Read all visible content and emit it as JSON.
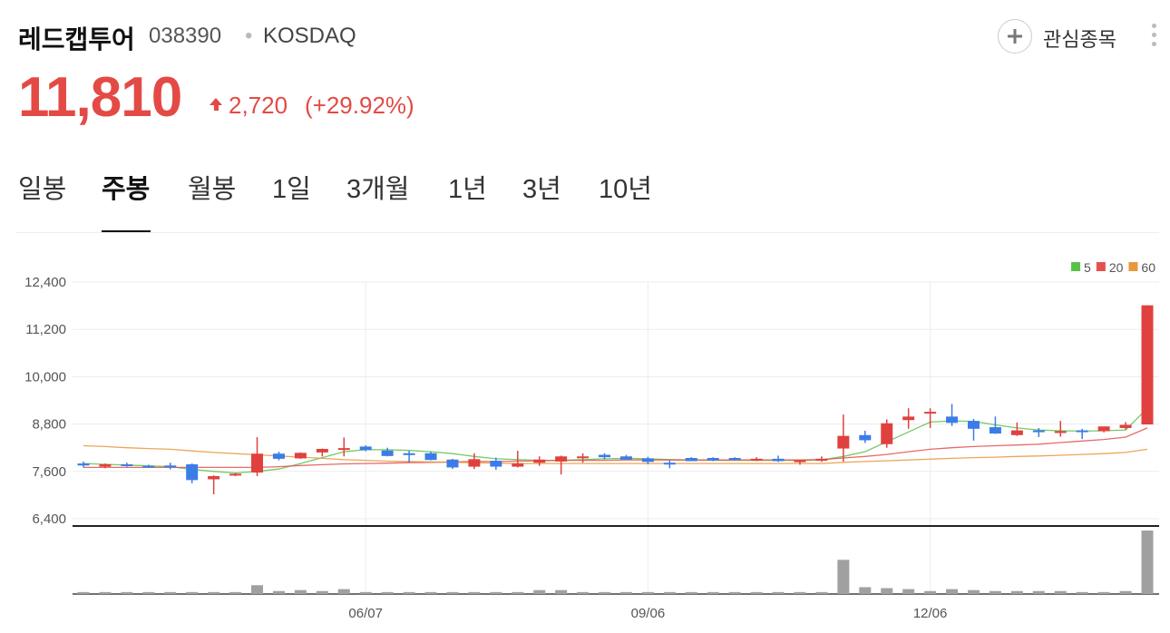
{
  "header": {
    "name": "레드캡투어",
    "code": "038390",
    "market": "KOSDAQ",
    "watch": "관심종목"
  },
  "quote": {
    "price": "11,810",
    "change": "2,720",
    "change_percent": "(+29.92%)"
  },
  "tabs": {
    "items": [
      "일봉",
      "주봉",
      "월봉",
      "1일",
      "3개월",
      "1년",
      "3년",
      "10년"
    ],
    "active": "주봉"
  },
  "chart_data": {
    "type": "candlestick",
    "categories": [
      null,
      null,
      null,
      null,
      null,
      null,
      null,
      null,
      null,
      null,
      null,
      null,
      null,
      "06/07",
      null,
      null,
      null,
      null,
      null,
      null,
      null,
      null,
      null,
      null,
      null,
      null,
      "09/06",
      null,
      null,
      null,
      null,
      null,
      null,
      null,
      null,
      null,
      null,
      null,
      null,
      "12/06",
      null,
      null,
      null,
      null,
      null,
      null,
      null,
      null,
      null,
      null
    ],
    "open": [
      7800,
      7720,
      7780,
      7740,
      7750,
      7780,
      7400,
      7500,
      7570,
      8050,
      7930,
      8080,
      8150,
      8230,
      8130,
      8060,
      8060,
      7900,
      7720,
      7870,
      7720,
      7820,
      7850,
      7940,
      8020,
      7980,
      7930,
      7820,
      7940,
      7940,
      7940,
      7880,
      7920,
      7840,
      7870,
      8180,
      8520,
      8290,
      8900,
      9080,
      8990,
      8880,
      8720,
      8520,
      8640,
      8600,
      8640,
      8620,
      8700,
      8790
    ],
    "high": [
      7850,
      7800,
      7820,
      7770,
      7820,
      7800,
      7500,
      7560,
      8470,
      8100,
      8080,
      8180,
      8460,
      8260,
      8200,
      8120,
      8100,
      7920,
      8060,
      7950,
      8120,
      7980,
      8000,
      8060,
      8060,
      8020,
      7970,
      7880,
      7960,
      7960,
      7960,
      7960,
      8000,
      7900,
      7980,
      9040,
      8630,
      8920,
      9200,
      9200,
      9310,
      8930,
      8990,
      8840,
      8700,
      8880,
      8680,
      8720,
      8850,
      11810
    ],
    "low": [
      7700,
      7680,
      7720,
      7700,
      7650,
      7300,
      7020,
      7480,
      7480,
      7880,
      7920,
      7980,
      7980,
      8110,
      7980,
      7820,
      7880,
      7660,
      7660,
      7640,
      7700,
      7740,
      7520,
      7820,
      7900,
      7920,
      7780,
      7680,
      7860,
      7860,
      7880,
      7860,
      7840,
      7770,
      7840,
      7850,
      8320,
      8200,
      8680,
      8700,
      8750,
      8380,
      8550,
      8500,
      8470,
      8480,
      8420,
      8590,
      8660,
      8790
    ],
    "close": [
      7750,
      7780,
      7750,
      7720,
      7700,
      7380,
      7480,
      7540,
      8050,
      7920,
      8070,
      8170,
      8190,
      8140,
      7990,
      8020,
      7890,
      7700,
      7910,
      7720,
      7800,
      7900,
      7980,
      7980,
      7960,
      7900,
      7840,
      7790,
      7860,
      7880,
      7900,
      7920,
      7860,
      7880,
      7920,
      8500,
      8390,
      8820,
      8990,
      9110,
      8830,
      8680,
      8560,
      8640,
      8600,
      8620,
      8600,
      8740,
      8780,
      11810
    ],
    "volume": [
      2,
      2,
      2,
      2,
      2,
      2,
      2,
      2,
      9,
      3,
      4,
      3,
      5,
      2,
      2,
      2,
      2,
      2,
      2,
      2,
      2,
      4,
      4,
      2,
      2,
      2,
      2,
      2,
      2,
      2,
      2,
      2,
      2,
      2,
      2,
      35,
      7,
      6,
      5,
      3,
      5,
      4,
      3,
      3,
      3,
      3,
      2,
      2,
      3,
      65
    ],
    "series": [
      {
        "name": "5",
        "color": "#5ac24a",
        "values": [
          7800,
          7780,
          7760,
          7740,
          7720,
          7650,
          7600,
          7560,
          7600,
          7660,
          7800,
          7950,
          8100,
          8150,
          8150,
          8130,
          8100,
          8050,
          7980,
          7920,
          7900,
          7880,
          7880,
          7900,
          7920,
          7930,
          7920,
          7900,
          7890,
          7880,
          7880,
          7880,
          7880,
          7880,
          7890,
          7980,
          8100,
          8350,
          8600,
          8850,
          8880,
          8870,
          8780,
          8700,
          8650,
          8630,
          8620,
          8630,
          8650,
          9200
        ]
      },
      {
        "name": "20",
        "color": "#e45050",
        "values": [
          7700,
          7700,
          7700,
          7700,
          7700,
          7700,
          7700,
          7700,
          7700,
          7720,
          7750,
          7770,
          7790,
          7800,
          7810,
          7820,
          7830,
          7840,
          7850,
          7850,
          7860,
          7870,
          7880,
          7880,
          7880,
          7890,
          7890,
          7890,
          7890,
          7890,
          7890,
          7890,
          7890,
          7890,
          7900,
          7940,
          7980,
          8030,
          8100,
          8160,
          8200,
          8230,
          8250,
          8270,
          8290,
          8330,
          8370,
          8410,
          8470,
          8700
        ]
      },
      {
        "name": "60",
        "color": "#e8973c",
        "values": [
          8250,
          8230,
          8200,
          8180,
          8160,
          8120,
          8080,
          8050,
          8020,
          7990,
          7960,
          7930,
          7900,
          7880,
          7860,
          7850,
          7840,
          7830,
          7820,
          7810,
          7800,
          7800,
          7800,
          7800,
          7800,
          7800,
          7800,
          7800,
          7800,
          7800,
          7800,
          7800,
          7800,
          7800,
          7800,
          7830,
          7850,
          7870,
          7890,
          7910,
          7930,
          7950,
          7960,
          7980,
          7990,
          8010,
          8030,
          8050,
          8080,
          8160
        ]
      }
    ],
    "ylim": [
      6400,
      12400
    ],
    "yticks": [
      {
        "value": 6400,
        "label": "6,400"
      },
      {
        "value": 7600,
        "label": "7,600"
      },
      {
        "value": 8800,
        "label": "8,800"
      },
      {
        "value": 10000,
        "label": "10,000"
      },
      {
        "value": 11200,
        "label": "11,200"
      },
      {
        "value": 12400,
        "label": "12,400"
      }
    ],
    "up_color": "#e0413e",
    "down_color": "#3c7ce6",
    "volume_color": "#a0a0a0",
    "grid": true,
    "legend": "top-right"
  }
}
